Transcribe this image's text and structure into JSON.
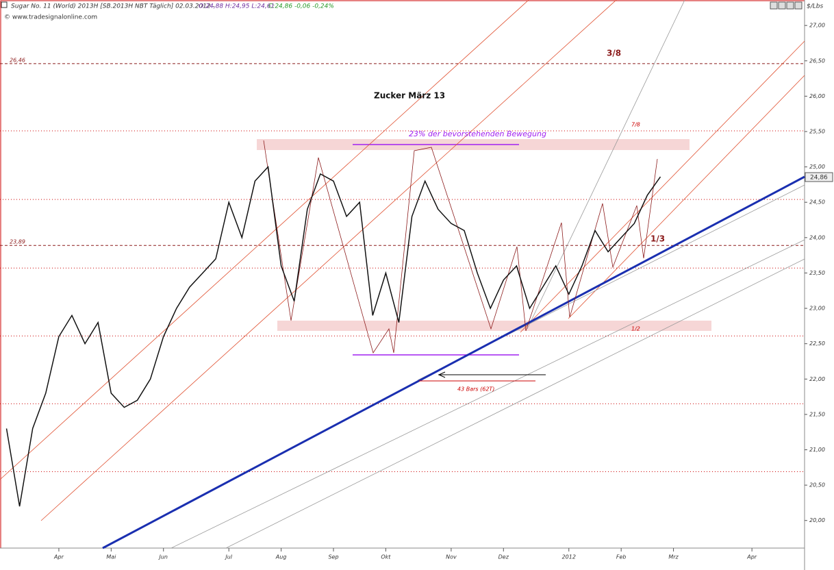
{
  "header": {
    "instrument": "Sugar No. 11 (World) 2013H [SB.2013H NBT Täglich] 02.03.2012 -",
    "ohl": "O:24,88 H:24,95 L:24,61",
    "close": "C:24,86 -0,06 -0,24%",
    "copyright": "© www.tradesignalonline.com",
    "unit": "$/Lbs",
    "last": "24,86"
  },
  "annotations": {
    "title": "Zucker März 13",
    "fib38": "3/8",
    "fib78": "7/8",
    "move": "23% der bevorstehenden Bewegung",
    "third": "1/3",
    "half": "1/2",
    "bars": "43 Bars (62T)"
  },
  "chart_data": {
    "type": "line",
    "color": "#111111",
    "categories": [
      null,
      null,
      null,
      null,
      "Apr",
      null,
      null,
      null,
      "Mai",
      null,
      null,
      null,
      "Jun",
      null,
      null,
      null,
      null,
      "Jul",
      null,
      null,
      null,
      "Aug",
      null,
      null,
      null,
      "Sep",
      null,
      null,
      null,
      "Okt",
      null,
      null,
      null,
      null,
      "Nov",
      null,
      null,
      null,
      "Dez",
      null,
      null,
      null,
      null,
      "2012",
      null,
      null,
      null,
      "Feb",
      null,
      null,
      null,
      "Mrz",
      null,
      null,
      null,
      null,
      null,
      "Apr",
      null,
      null,
      null
    ],
    "values": [
      21.3,
      20.2,
      21.3,
      21.8,
      22.6,
      22.9,
      22.5,
      22.8,
      21.8,
      21.6,
      21.7,
      22.0,
      22.6,
      23.0,
      23.3,
      23.5,
      23.7,
      24.5,
      24.0,
      24.8,
      25.0,
      23.6,
      23.1,
      24.4,
      24.9,
      24.8,
      24.3,
      24.5,
      22.9,
      23.5,
      22.8,
      24.3,
      24.8,
      24.4,
      24.2,
      24.1,
      23.5,
      23.0,
      23.4,
      23.6,
      23.0,
      23.3,
      23.6,
      23.2,
      23.6,
      24.1,
      23.8,
      24.0,
      24.2,
      24.6,
      24.86,
      null,
      null,
      null,
      null,
      null,
      null,
      null,
      null,
      null,
      null
    ],
    "ylim": [
      19.61,
      27.36
    ],
    "yticks": [
      {
        "value": 20,
        "label": "20,00"
      },
      {
        "value": 20.5,
        "label": "20,50"
      },
      {
        "value": 21,
        "label": "21,00"
      },
      {
        "value": 21.5,
        "label": "21,50"
      },
      {
        "value": 22,
        "label": "22,00"
      },
      {
        "value": 22.5,
        "label": "22,50"
      },
      {
        "value": 23,
        "label": "23,00"
      },
      {
        "value": 23.5,
        "label": "23,50"
      },
      {
        "value": 24,
        "label": "24,00"
      },
      {
        "value": 24.5,
        "label": "24,50"
      },
      {
        "value": 25,
        "label": "25,00"
      },
      {
        "value": 25.5,
        "label": "25,50"
      },
      {
        "value": 26,
        "label": "26,00"
      },
      {
        "value": 26.5,
        "label": "26,50"
      },
      {
        "value": 27,
        "label": "27,00"
      }
    ],
    "hlines": [
      {
        "value": 26.46,
        "label": "26,46"
      },
      {
        "value": 23.89,
        "label": "23,89"
      }
    ],
    "levels": [
      25.51,
      24.54,
      23.57,
      22.61,
      21.65,
      20.69
    ]
  }
}
